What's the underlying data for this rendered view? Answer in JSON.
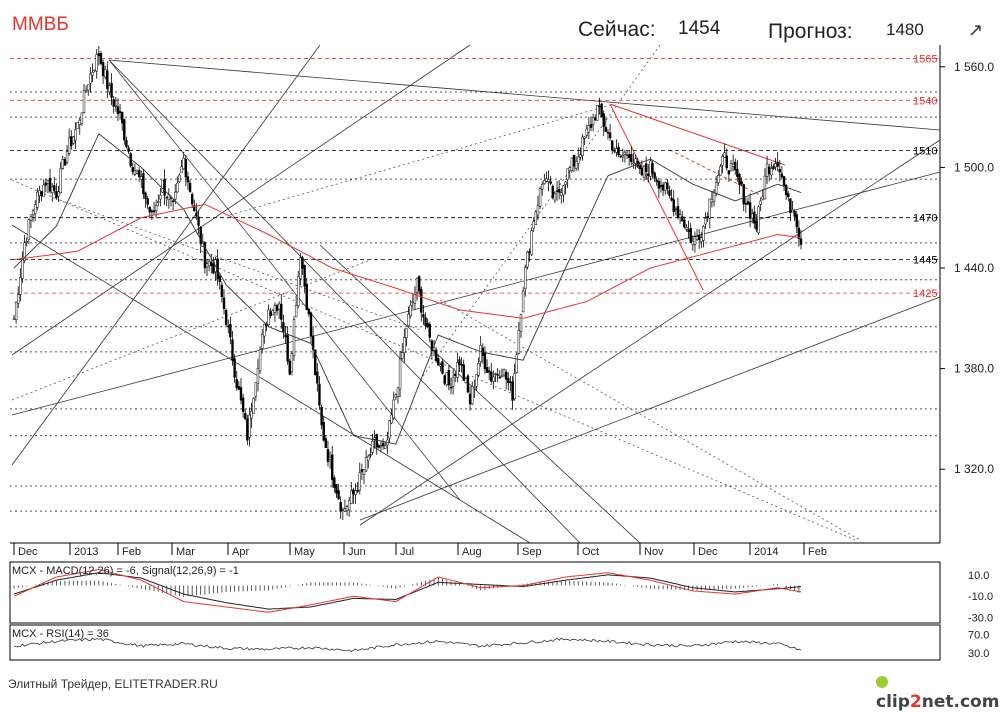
{
  "header": {
    "ticker": "ММВБ",
    "current_label": "Сейчас:",
    "current_value": "1454",
    "forecast_label": "Прогноз:",
    "forecast_value": "1480",
    "arrow_icon": "↗"
  },
  "footer": {
    "source": "Элитный Трейдер, ELITETRADER.RU",
    "logo_prefix": "clip",
    "logo_two": "2",
    "logo_suffix": "net.com"
  },
  "colors": {
    "accent": "#e8342c",
    "price": "#000000",
    "ma_fast": "#333333",
    "ma_slow": "#e8342c"
  },
  "chart_data": [
    {
      "type": "bar",
      "name": "price",
      "x_ticks": [
        "Dec",
        "2013",
        "Feb",
        "Mar",
        "Apr",
        "May",
        "Jun",
        "Jul",
        "Aug",
        "Sep",
        "Oct",
        "Nov",
        "Dec",
        "2014",
        "Feb"
      ],
      "y_ticks": [
        "1 560.0",
        "1 500.0",
        "1 440.0",
        "1 380.0",
        "1 320.0"
      ],
      "y_tick_values": [
        1560,
        1500,
        1440,
        1380,
        1320
      ],
      "ylim": [
        1276,
        1573
      ],
      "levels": [
        {
          "value": 1565,
          "label": "1565",
          "color": "#e8342c"
        },
        {
          "value": 1540,
          "label": "1540",
          "color": "#e8342c"
        },
        {
          "value": 1510,
          "label": "1510",
          "color": "#000000"
        },
        {
          "value": 1470,
          "label": "1470",
          "color": "#000000"
        },
        {
          "value": 1445,
          "label": "1445",
          "color": "#000000"
        },
        {
          "value": 1425,
          "label": "1425",
          "color": "#e8342c"
        }
      ],
      "close_anchors": [
        [
          0,
          1410
        ],
        [
          5,
          1455
        ],
        [
          10,
          1480
        ],
        [
          15,
          1492
        ],
        [
          20,
          1485
        ],
        [
          25,
          1510
        ],
        [
          30,
          1525
        ],
        [
          35,
          1552
        ],
        [
          40,
          1568
        ],
        [
          45,
          1545
        ],
        [
          50,
          1530
        ],
        [
          55,
          1505
        ],
        [
          60,
          1490
        ],
        [
          65,
          1470
        ],
        [
          70,
          1490
        ],
        [
          75,
          1475
        ],
        [
          80,
          1505
        ],
        [
          85,
          1475
        ],
        [
          90,
          1445
        ],
        [
          95,
          1440
        ],
        [
          100,
          1410
        ],
        [
          105,
          1372
        ],
        [
          110,
          1340
        ],
        [
          115,
          1385
        ],
        [
          120,
          1415
        ],
        [
          125,
          1420
        ],
        [
          130,
          1380
        ],
        [
          135,
          1450
        ],
        [
          140,
          1400
        ],
        [
          145,
          1345
        ],
        [
          150,
          1318
        ],
        [
          155,
          1295
        ],
        [
          160,
          1305
        ],
        [
          165,
          1320
        ],
        [
          170,
          1335
        ],
        [
          175,
          1330
        ],
        [
          180,
          1365
        ],
        [
          185,
          1405
        ],
        [
          190,
          1430
        ],
        [
          195,
          1400
        ],
        [
          200,
          1385
        ],
        [
          205,
          1370
        ],
        [
          210,
          1385
        ],
        [
          215,
          1360
        ],
        [
          220,
          1390
        ],
        [
          225,
          1375
        ],
        [
          230,
          1380
        ],
        [
          235,
          1365
        ],
        [
          240,
          1430
        ],
        [
          245,
          1470
        ],
        [
          250,
          1495
        ],
        [
          255,
          1480
        ],
        [
          260,
          1495
        ],
        [
          265,
          1505
        ],
        [
          270,
          1520
        ],
        [
          275,
          1535
        ],
        [
          280,
          1520
        ],
        [
          285,
          1505
        ],
        [
          290,
          1510
        ],
        [
          295,
          1495
        ],
        [
          300,
          1500
        ],
        [
          305,
          1490
        ],
        [
          310,
          1480
        ],
        [
          315,
          1470
        ],
        [
          320,
          1455
        ],
        [
          325,
          1465
        ],
        [
          330,
          1490
        ],
        [
          335,
          1505
        ],
        [
          340,
          1495
        ],
        [
          345,
          1480
        ],
        [
          350,
          1465
        ],
        [
          355,
          1500
        ],
        [
          360,
          1505
        ],
        [
          365,
          1478
        ],
        [
          368,
          1475
        ],
        [
          371,
          1454
        ]
      ],
      "ma_fast_anchors": [
        [
          0,
          1440
        ],
        [
          20,
          1465
        ],
        [
          40,
          1520
        ],
        [
          60,
          1500
        ],
        [
          80,
          1475
        ],
        [
          100,
          1430
        ],
        [
          120,
          1405
        ],
        [
          140,
          1395
        ],
        [
          160,
          1340
        ],
        [
          180,
          1335
        ],
        [
          200,
          1400
        ],
        [
          220,
          1390
        ],
        [
          240,
          1385
        ],
        [
          260,
          1440
        ],
        [
          280,
          1495
        ],
        [
          300,
          1505
        ],
        [
          320,
          1490
        ],
        [
          340,
          1480
        ],
        [
          360,
          1490
        ],
        [
          371,
          1485
        ]
      ],
      "ma_slow_anchors": [
        [
          0,
          1445
        ],
        [
          30,
          1450
        ],
        [
          60,
          1470
        ],
        [
          90,
          1478
        ],
        [
          120,
          1460
        ],
        [
          150,
          1440
        ],
        [
          180,
          1428
        ],
        [
          210,
          1415
        ],
        [
          240,
          1410
        ],
        [
          270,
          1420
        ],
        [
          300,
          1440
        ],
        [
          330,
          1450
        ],
        [
          360,
          1460
        ],
        [
          371,
          1458
        ]
      ]
    },
    {
      "type": "line",
      "name": "macd",
      "label": "MCX - MACD(12,26) = -6, Signal(12,26,9) = -1",
      "y_ticks": [
        "10.0",
        "-10.0",
        "-30.0"
      ],
      "y_tick_values": [
        10,
        -10,
        -30
      ],
      "ylim": [
        -35,
        22
      ],
      "series": [
        {
          "name": "MACD",
          "color": "#e8342c",
          "anchors": [
            [
              0,
              -10
            ],
            [
              20,
              8
            ],
            [
              40,
              15
            ],
            [
              60,
              5
            ],
            [
              80,
              -15
            ],
            [
              100,
              -20
            ],
            [
              120,
              -25
            ],
            [
              140,
              -18
            ],
            [
              160,
              -10
            ],
            [
              180,
              -15
            ],
            [
              200,
              8
            ],
            [
              220,
              -2
            ],
            [
              240,
              0
            ],
            [
              260,
              8
            ],
            [
              280,
              12
            ],
            [
              300,
              5
            ],
            [
              320,
              -5
            ],
            [
              340,
              -8
            ],
            [
              360,
              -2
            ],
            [
              371,
              -6
            ]
          ]
        },
        {
          "name": "Signal",
          "color": "#222222",
          "anchors": [
            [
              0,
              -8
            ],
            [
              20,
              5
            ],
            [
              40,
              12
            ],
            [
              60,
              7
            ],
            [
              80,
              -8
            ],
            [
              100,
              -16
            ],
            [
              120,
              -22
            ],
            [
              140,
              -20
            ],
            [
              160,
              -12
            ],
            [
              180,
              -13
            ],
            [
              200,
              3
            ],
            [
              220,
              1
            ],
            [
              240,
              -1
            ],
            [
              260,
              5
            ],
            [
              280,
              10
            ],
            [
              300,
              7
            ],
            [
              320,
              -2
            ],
            [
              340,
              -6
            ],
            [
              360,
              -3
            ],
            [
              371,
              -1
            ]
          ]
        }
      ],
      "histogram": true
    },
    {
      "type": "line",
      "name": "rsi",
      "label": "MCX - RSI(14) = 36",
      "y_ticks": [
        "70.0",
        "30.0"
      ],
      "y_tick_values": [
        70,
        30
      ],
      "ylim": [
        15,
        90
      ],
      "series": [
        {
          "name": "RSI",
          "color": "#333333",
          "anchors": [
            [
              0,
              45
            ],
            [
              20,
              55
            ],
            [
              40,
              60
            ],
            [
              60,
              45
            ],
            [
              80,
              50
            ],
            [
              100,
              40
            ],
            [
              120,
              38
            ],
            [
              140,
              42
            ],
            [
              160,
              35
            ],
            [
              180,
              48
            ],
            [
              200,
              55
            ],
            [
              220,
              45
            ],
            [
              240,
              52
            ],
            [
              260,
              60
            ],
            [
              280,
              55
            ],
            [
              300,
              48
            ],
            [
              320,
              45
            ],
            [
              340,
              55
            ],
            [
              360,
              50
            ],
            [
              371,
              36
            ]
          ]
        }
      ]
    }
  ]
}
